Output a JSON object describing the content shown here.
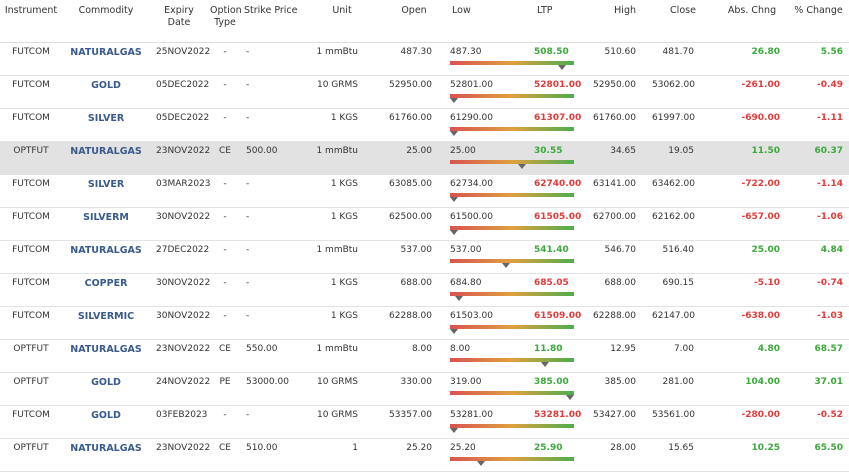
{
  "headers": {
    "instrument": "Instrument",
    "commodity": "Commodity",
    "expiry": "Expiry Date",
    "option_type": "Option Type",
    "strike": "Strike Price",
    "unit": "Unit",
    "open": "Open",
    "low": "Low",
    "ltp": "LTP",
    "high": "High",
    "close": "Close",
    "abs_chng": "Abs. Chng",
    "pct_change": "% Change"
  },
  "colors": {
    "positive": "#3aa83a",
    "negative": "#e03c3c",
    "commodity_link": "#3a5a8c",
    "highlight_row": "#e2e2e2"
  },
  "rows": [
    {
      "instrument": "FUTCOM",
      "commodity": "NATURALGAS",
      "expiry": "25NOV2022",
      "option_type": "-",
      "strike": "-",
      "unit": "1 mmBtu",
      "open": "487.30",
      "low": "487.30",
      "ltp": "508.50",
      "high": "510.60",
      "close": "481.70",
      "abs": "26.80",
      "pct": "5.56",
      "dir": "pos",
      "ltp_position": 0.9
    },
    {
      "instrument": "FUTCOM",
      "commodity": "GOLD",
      "expiry": "05DEC2022",
      "option_type": "-",
      "strike": "-",
      "unit": "10 GRMS",
      "open": "52950.00",
      "low": "52801.00",
      "ltp": "52801.00",
      "high": "52950.00",
      "close": "53062.00",
      "abs": "-261.00",
      "pct": "-0.49",
      "dir": "neg",
      "ltp_position": 0.0
    },
    {
      "instrument": "FUTCOM",
      "commodity": "SILVER",
      "expiry": "05DEC2022",
      "option_type": "-",
      "strike": "-",
      "unit": "1 KGS",
      "open": "61760.00",
      "low": "61290.00",
      "ltp": "61307.00",
      "high": "61760.00",
      "close": "61997.00",
      "abs": "-690.00",
      "pct": "-1.11",
      "dir": "neg",
      "ltp_position": 0.03
    },
    {
      "instrument": "OPTFUT",
      "commodity": "NATURALGAS",
      "expiry": "23NOV2022",
      "option_type": "CE",
      "strike": "500.00",
      "unit": "1 mmBtu",
      "open": "25.00",
      "low": "25.00",
      "ltp": "30.55",
      "high": "34.65",
      "close": "19.05",
      "abs": "11.50",
      "pct": "60.37",
      "dir": "pos",
      "ltp_position": 0.58,
      "highlight": true
    },
    {
      "instrument": "FUTCOM",
      "commodity": "SILVER",
      "expiry": "03MAR2023",
      "option_type": "-",
      "strike": "-",
      "unit": "1 KGS",
      "open": "63085.00",
      "low": "62734.00",
      "ltp": "62740.00",
      "high": "63141.00",
      "close": "63462.00",
      "abs": "-722.00",
      "pct": "-1.14",
      "dir": "neg",
      "ltp_position": 0.01
    },
    {
      "instrument": "FUTCOM",
      "commodity": "SILVERM",
      "expiry": "30NOV2022",
      "option_type": "-",
      "strike": "-",
      "unit": "1 KGS",
      "open": "62500.00",
      "low": "61500.00",
      "ltp": "61505.00",
      "high": "62700.00",
      "close": "62162.00",
      "abs": "-657.00",
      "pct": "-1.06",
      "dir": "neg",
      "ltp_position": 0.0
    },
    {
      "instrument": "FUTCOM",
      "commodity": "NATURALGAS",
      "expiry": "27DEC2022",
      "option_type": "-",
      "strike": "-",
      "unit": "1 mmBtu",
      "open": "537.00",
      "low": "537.00",
      "ltp": "541.40",
      "high": "546.70",
      "close": "516.40",
      "abs": "25.00",
      "pct": "4.84",
      "dir": "pos",
      "ltp_position": 0.45
    },
    {
      "instrument": "FUTCOM",
      "commodity": "COPPER",
      "expiry": "30NOV2022",
      "option_type": "-",
      "strike": "-",
      "unit": "1 KGS",
      "open": "688.00",
      "low": "684.80",
      "ltp": "685.05",
      "high": "688.00",
      "close": "690.15",
      "abs": "-5.10",
      "pct": "-0.74",
      "dir": "neg",
      "ltp_position": 0.07
    },
    {
      "instrument": "FUTCOM",
      "commodity": "SILVERMIC",
      "expiry": "30NOV2022",
      "option_type": "-",
      "strike": "-",
      "unit": "1 KGS",
      "open": "62288.00",
      "low": "61503.00",
      "ltp": "61509.00",
      "high": "62288.00",
      "close": "62147.00",
      "abs": "-638.00",
      "pct": "-1.03",
      "dir": "neg",
      "ltp_position": 0.01
    },
    {
      "instrument": "OPTFUT",
      "commodity": "NATURALGAS",
      "expiry": "23NOV2022",
      "option_type": "CE",
      "strike": "550.00",
      "unit": "1 mmBtu",
      "open": "8.00",
      "low": "8.00",
      "ltp": "11.80",
      "high": "12.95",
      "close": "7.00",
      "abs": "4.80",
      "pct": "68.57",
      "dir": "pos",
      "ltp_position": 0.77
    },
    {
      "instrument": "OPTFUT",
      "commodity": "GOLD",
      "expiry": "24NOV2022",
      "option_type": "PE",
      "strike": "53000.00",
      "unit": "10 GRMS",
      "open": "330.00",
      "low": "319.00",
      "ltp": "385.00",
      "high": "385.00",
      "close": "281.00",
      "abs": "104.00",
      "pct": "37.01",
      "dir": "pos",
      "ltp_position": 1.0
    },
    {
      "instrument": "FUTCOM",
      "commodity": "GOLD",
      "expiry": "03FEB2023",
      "option_type": "-",
      "strike": "-",
      "unit": "10 GRMS",
      "open": "53357.00",
      "low": "53281.00",
      "ltp": "53281.00",
      "high": "53427.00",
      "close": "53561.00",
      "abs": "-280.00",
      "pct": "-0.52",
      "dir": "neg",
      "ltp_position": 0.0
    },
    {
      "instrument": "OPTFUT",
      "commodity": "NATURALGAS",
      "expiry": "23NOV2022",
      "option_type": "CE",
      "strike": "510.00",
      "unit": "1",
      "open": "25.20",
      "low": "25.20",
      "ltp": "25.90",
      "high": "28.00",
      "close": "15.65",
      "abs": "10.25",
      "pct": "65.50",
      "dir": "pos",
      "ltp_position": 0.25
    }
  ]
}
